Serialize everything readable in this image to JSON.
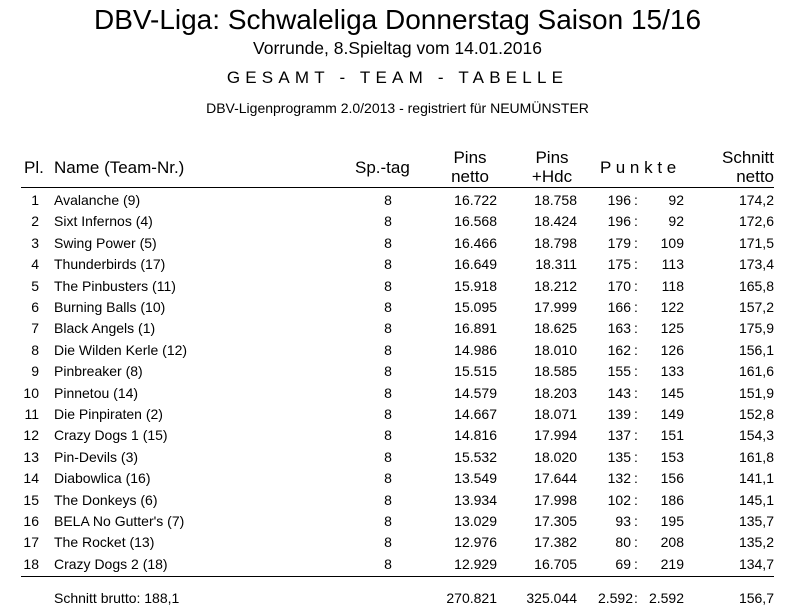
{
  "header": {
    "title": "DBV-Liga: Schwaleliga Donnerstag Saison 15/16",
    "subtitle": "Vorrunde, 8.Spieltag vom 14.01.2016",
    "section": "GESAMT - TEAM - TABELLE",
    "program": "DBV-Ligenprogramm 2.0/2013 - registriert für NEUMÜNSTER"
  },
  "table": {
    "columns": {
      "pl": "Pl.",
      "name": "Name  (Team-Nr.)",
      "sptag": "Sp.-tag",
      "pins_l1": "Pins",
      "pins_l2": "netto",
      "hdc_l1": "Pins",
      "hdc_l2": "+Hdc",
      "punkte": "P u n k t e",
      "schnitt_l1": "Schnitt",
      "schnitt_l2": "netto"
    },
    "rows": [
      {
        "pl": "1",
        "name": "Avalanche  (9)",
        "sptag": "8",
        "pins": "16.722",
        "hdc": "18.758",
        "p1": "196",
        "p2": "92",
        "schnitt": "174,2"
      },
      {
        "pl": "2",
        "name": "Sixt Infernos  (4)",
        "sptag": "8",
        "pins": "16.568",
        "hdc": "18.424",
        "p1": "196",
        "p2": "92",
        "schnitt": "172,6"
      },
      {
        "pl": "3",
        "name": "Swing Power  (5)",
        "sptag": "8",
        "pins": "16.466",
        "hdc": "18.798",
        "p1": "179",
        "p2": "109",
        "schnitt": "171,5"
      },
      {
        "pl": "4",
        "name": "Thunderbirds  (17)",
        "sptag": "8",
        "pins": "16.649",
        "hdc": "18.311",
        "p1": "175",
        "p2": "113",
        "schnitt": "173,4"
      },
      {
        "pl": "5",
        "name": "The Pinbusters  (11)",
        "sptag": "8",
        "pins": "15.918",
        "hdc": "18.212",
        "p1": "170",
        "p2": "118",
        "schnitt": "165,8"
      },
      {
        "pl": "6",
        "name": "Burning Balls  (10)",
        "sptag": "8",
        "pins": "15.095",
        "hdc": "17.999",
        "p1": "166",
        "p2": "122",
        "schnitt": "157,2"
      },
      {
        "pl": "7",
        "name": "Black Angels  (1)",
        "sptag": "8",
        "pins": "16.891",
        "hdc": "18.625",
        "p1": "163",
        "p2": "125",
        "schnitt": "175,9"
      },
      {
        "pl": "8",
        "name": "Die Wilden Kerle  (12)",
        "sptag": "8",
        "pins": "14.986",
        "hdc": "18.010",
        "p1": "162",
        "p2": "126",
        "schnitt": "156,1"
      },
      {
        "pl": "9",
        "name": "Pinbreaker  (8)",
        "sptag": "8",
        "pins": "15.515",
        "hdc": "18.585",
        "p1": "155",
        "p2": "133",
        "schnitt": "161,6"
      },
      {
        "pl": "10",
        "name": "Pinnetou  (14)",
        "sptag": "8",
        "pins": "14.579",
        "hdc": "18.203",
        "p1": "143",
        "p2": "145",
        "schnitt": "151,9"
      },
      {
        "pl": "11",
        "name": "Die Pinpiraten  (2)",
        "sptag": "8",
        "pins": "14.667",
        "hdc": "18.071",
        "p1": "139",
        "p2": "149",
        "schnitt": "152,8"
      },
      {
        "pl": "12",
        "name": "Crazy Dogs 1  (15)",
        "sptag": "8",
        "pins": "14.816",
        "hdc": "17.994",
        "p1": "137",
        "p2": "151",
        "schnitt": "154,3"
      },
      {
        "pl": "13",
        "name": "Pin-Devils  (3)",
        "sptag": "8",
        "pins": "15.532",
        "hdc": "18.020",
        "p1": "135",
        "p2": "153",
        "schnitt": "161,8"
      },
      {
        "pl": "14",
        "name": "Diabowlica  (16)",
        "sptag": "8",
        "pins": "13.549",
        "hdc": "17.644",
        "p1": "132",
        "p2": "156",
        "schnitt": "141,1"
      },
      {
        "pl": "15",
        "name": "The Donkeys  (6)",
        "sptag": "8",
        "pins": "13.934",
        "hdc": "17.998",
        "p1": "102",
        "p2": "186",
        "schnitt": "145,1"
      },
      {
        "pl": "16",
        "name": "BELA No Gutter's  (7)",
        "sptag": "8",
        "pins": "13.029",
        "hdc": "17.305",
        "p1": "93",
        "p2": "195",
        "schnitt": "135,7"
      },
      {
        "pl": "17",
        "name": "The Rocket  (13)",
        "sptag": "8",
        "pins": "12.976",
        "hdc": "17.382",
        "p1": "80",
        "p2": "208",
        "schnitt": "135,2"
      },
      {
        "pl": "18",
        "name": "Crazy Dogs 2  (18)",
        "sptag": "8",
        "pins": "12.929",
        "hdc": "16.705",
        "p1": "69",
        "p2": "219",
        "schnitt": "134,7"
      }
    ],
    "footer": {
      "label": "Schnitt brutto: 188,1",
      "pins": "270.821",
      "hdc": "325.044",
      "p1": "2.592",
      "p2": "2.592",
      "schnitt": "156,7"
    }
  }
}
